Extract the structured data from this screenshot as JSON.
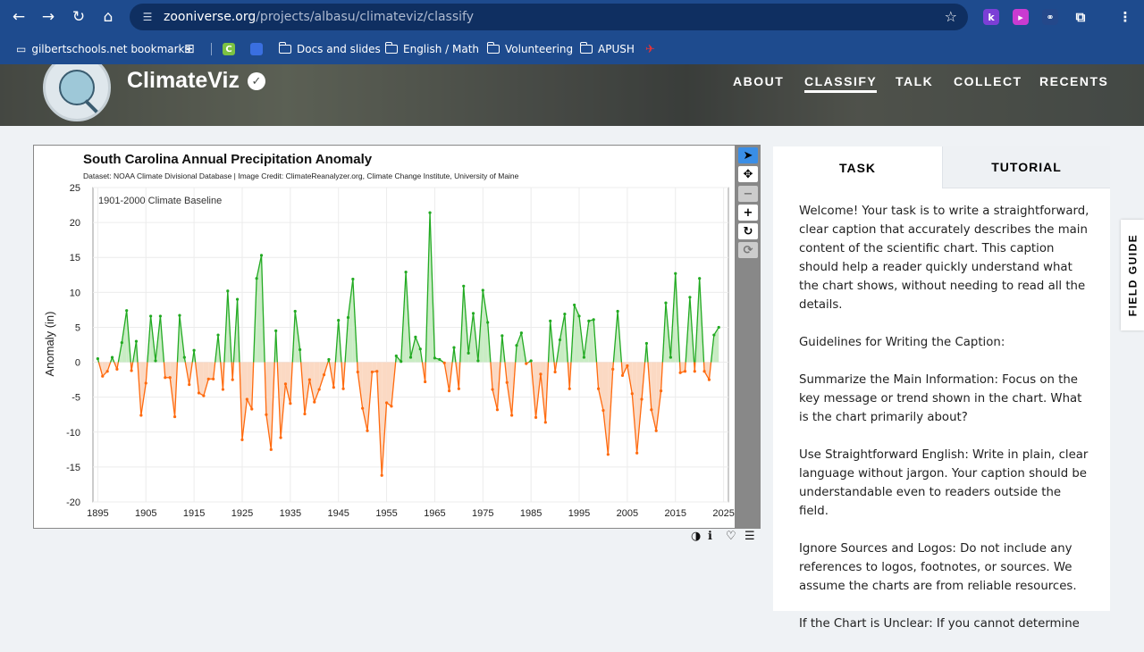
{
  "browser": {
    "url_host": "zooniverse.org",
    "url_path": "/projects/albasu/climateviz/classify",
    "bookmarks": [
      {
        "label": "gilbertschools.net bookmarks"
      },
      {
        "label": "Docs and slides"
      },
      {
        "label": "English / Math"
      },
      {
        "label": "Volunteering"
      },
      {
        "label": "APUSH"
      }
    ]
  },
  "site": {
    "project_title": "ClimateViz",
    "nav": [
      "ABOUT",
      "CLASSIFY",
      "TALK",
      "COLLECT",
      "RECENTS"
    ]
  },
  "task_panel": {
    "tabs": [
      "TASK",
      "TUTORIAL"
    ],
    "paragraphs": [
      "Welcome! Your task is to write a straightforward, clear caption that accurately describes the main content of the scientific chart. This caption should help a reader quickly understand what the chart shows, without needing to read all the details.",
      "Guidelines for Writing the Caption:",
      "Summarize the Main Information: Focus on the key message or trend shown in the chart. What is the chart primarily about?",
      "Use Straightforward English: Write in plain, clear language without jargon. Your caption should be understandable even to readers outside the field.",
      "Ignore Sources and Logos: Do not include any references to logos, footnotes, or sources. We assume the charts are from reliable resources.",
      "If the Chart is Unclear: If you cannot determine"
    ],
    "field_guide": "FIELD GUIDE"
  },
  "colors": {
    "positive": "#22aa22",
    "negative": "#ff6a0e",
    "positive_fill": "#c9ecc4",
    "negative_fill": "#fbd9c3"
  },
  "chart_data": {
    "type": "area",
    "title": "South Carolina Annual Precipitation Anomaly",
    "subtitle": "Dataset: NOAA Climate Divisional Database | Image Credit: ClimateReanalyzer.org, Climate Change Institute, University of Maine",
    "annotation": "1901-2000 Climate Baseline",
    "ylabel": "Anomaly (in)",
    "xlim": [
      1894,
      2026
    ],
    "ylim": [
      -20,
      25
    ],
    "xticks": [
      1895,
      1905,
      1915,
      1925,
      1935,
      1945,
      1955,
      1965,
      1975,
      1985,
      1995,
      2005,
      2015,
      2025
    ],
    "yticks": [
      -20,
      -15,
      -10,
      -5,
      0,
      5,
      10,
      15,
      20,
      25
    ],
    "x_start": 1895,
    "values": [
      0.5,
      -2,
      -1.3,
      0.7,
      -1,
      2.8,
      7.4,
      -1.2,
      3,
      -7.6,
      -3,
      6.6,
      0.2,
      6.6,
      -2.2,
      -2.2,
      -7.8,
      6.7,
      0.7,
      -3.2,
      1.7,
      -4.4,
      -4.8,
      -2.4,
      -2.4,
      3.9,
      -3.9,
      10.2,
      -2.5,
      9,
      -11.1,
      -5.3,
      -6.7,
      12,
      15.3,
      -7.5,
      -12.5,
      4.5,
      -10.8,
      -3.1,
      -5.9,
      7.3,
      1.8,
      -7.4,
      -2.5,
      -5.7,
      -3.9,
      -1.8,
      0.4,
      -3.6,
      6,
      -3.8,
      6.4,
      11.9,
      -1.4,
      -6.6,
      -9.8,
      -1.4,
      -1.3,
      -16.2,
      -5.8,
      -6.3,
      0.9,
      0.1,
      12.9,
      0.7,
      3.6,
      1.9,
      -2.8,
      21.4,
      0.6,
      0.4,
      -0.1,
      -4.1,
      2.1,
      -3.8,
      10.9,
      1.3,
      7,
      0.2,
      10.3,
      5.7,
      -3.9,
      -6.8,
      3.8,
      -2.9,
      -7.6,
      2.4,
      4.2,
      -0.2,
      0.2,
      -7.9,
      -1.7,
      -8.6,
      5.9,
      -1.4,
      3.2,
      6.9,
      -3.8,
      8.2,
      6.6,
      0.7,
      5.9,
      6.1,
      -3.8,
      -6.9,
      -13.2,
      -1,
      7.3,
      -1.9,
      -0.5,
      -4.5,
      -13,
      -5.3,
      2.7,
      -6.8,
      -9.8,
      -4.1,
      8.5,
      0.7,
      12.7,
      -1.5,
      -1.3,
      9.3,
      -1.3,
      12,
      -1.3,
      -2.5,
      3.9,
      5
    ]
  }
}
